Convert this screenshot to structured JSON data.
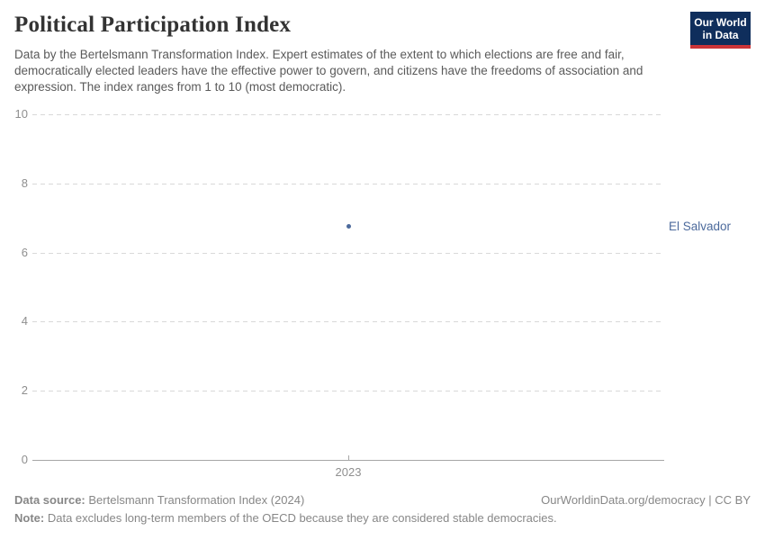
{
  "header": {
    "title": "Political Participation Index",
    "subtitle": "Data by the Bertelsmann Transformation Index. Expert estimates of the extent to which elections are free and fair, democratically elected leaders have the effective power to govern, and citizens have the freedoms of association and expression. The index ranges from 1 to 10 (most democratic).",
    "logo": {
      "line1": "Our World",
      "line2": "in Data",
      "bg_color": "#0f2e5c",
      "accent_color": "#cb3438"
    }
  },
  "chart_data": {
    "type": "scatter",
    "title": "Political Participation Index",
    "xlabel": "",
    "ylabel": "",
    "series": [
      {
        "name": "El Salvador",
        "values": [
          [
            2023,
            6.75
          ]
        ],
        "color": "#4c6a9c"
      }
    ],
    "xticks": [
      "2023"
    ],
    "yticks": [
      0,
      2,
      4,
      6,
      8,
      10
    ],
    "ylim": [
      0,
      10
    ],
    "grid": true,
    "gridline_style": "dashed",
    "entity_label": "El Salvador",
    "entity_label_position": "right",
    "legend": "none"
  },
  "footer": {
    "data_source_label": "Data source:",
    "data_source_value": "Bertelsmann Transformation Index (2024)",
    "attribution": "OurWorldinData.org/democracy | CC BY",
    "note_label": "Note:",
    "note_value": "Data excludes long-term members of the OECD because they are considered stable democracies."
  }
}
